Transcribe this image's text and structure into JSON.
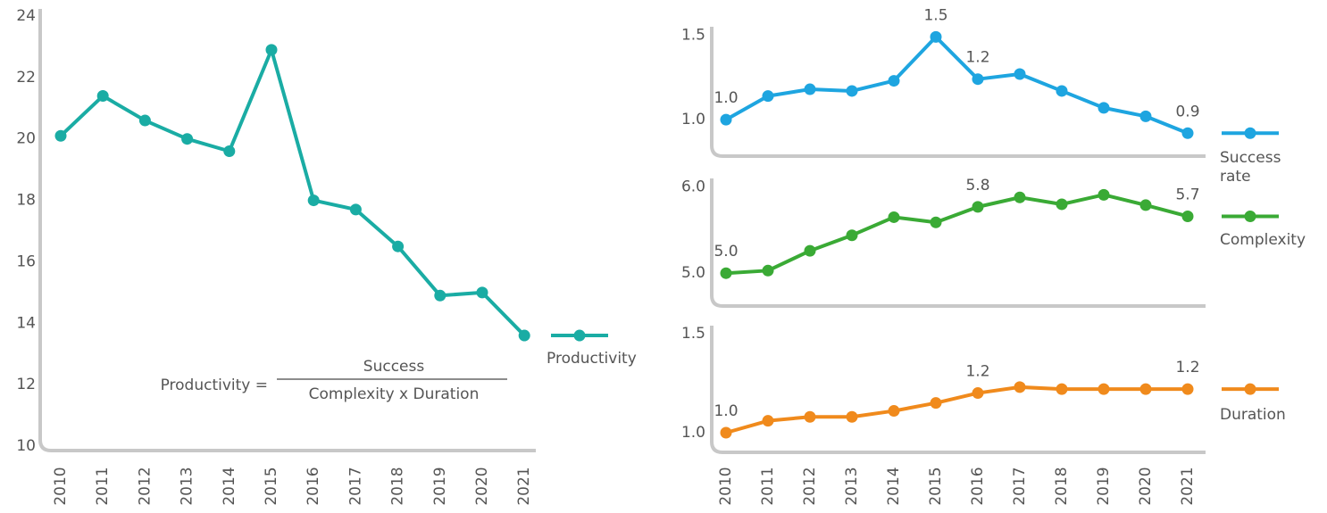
{
  "chart_data": [
    {
      "type": "line",
      "categories": [
        "2010",
        "2011",
        "2012",
        "2013",
        "2014",
        "2015",
        "2016",
        "2017",
        "2018",
        "2019",
        "2020",
        "2021"
      ],
      "series": [
        {
          "name": "Productivity",
          "color": "#1aaca4",
          "values": [
            20.1,
            21.4,
            20.6,
            20.0,
            19.6,
            22.9,
            18.0,
            17.7,
            16.5,
            14.9,
            15.0,
            13.6
          ]
        }
      ],
      "ylim": [
        10,
        24
      ],
      "yticks": [
        10,
        12,
        14,
        16,
        18,
        20,
        22,
        24
      ],
      "annotation": {
        "left": "Productivity =",
        "numerator": "Success",
        "denominator": "Complexity x Duration"
      }
    },
    {
      "type": "line",
      "series": [
        {
          "name": "Success rate",
          "color": "#1ea5e0",
          "values": [
            1.0,
            1.14,
            1.18,
            1.17,
            1.23,
            1.49,
            1.24,
            1.27,
            1.17,
            1.07,
            1.02,
            0.92
          ],
          "value_labels": [
            "1.0",
            null,
            null,
            null,
            null,
            "1.5",
            "1.2",
            null,
            null,
            null,
            null,
            "0.9"
          ]
        }
      ],
      "ylim": [
        0.8,
        1.55
      ],
      "yticks": [
        {
          "value": 1,
          "label": "1.0"
        },
        {
          "value": 1.5,
          "label": "1.5"
        }
      ]
    },
    {
      "type": "line",
      "series": [
        {
          "name": "Complexity",
          "color": "#3aaa35",
          "values": [
            5.0,
            5.03,
            5.26,
            5.44,
            5.65,
            5.59,
            5.77,
            5.88,
            5.8,
            5.91,
            5.79,
            5.66
          ],
          "value_labels": [
            "5.0",
            null,
            null,
            null,
            null,
            null,
            "5.8",
            null,
            null,
            null,
            null,
            "5.7"
          ]
        }
      ],
      "ylim": [
        4.65,
        6.1
      ],
      "yticks": [
        {
          "value": 5,
          "label": "5.0"
        },
        {
          "value": 6,
          "label": "6.0"
        }
      ]
    },
    {
      "type": "line",
      "categories": [
        "2010",
        "2011",
        "2012",
        "2013",
        "2014",
        "2015",
        "2016",
        "2017",
        "2018",
        "2019",
        "2020",
        "2021"
      ],
      "series": [
        {
          "name": "Duration",
          "color": "#f08a1c",
          "values": [
            1.0,
            1.06,
            1.08,
            1.08,
            1.11,
            1.15,
            1.2,
            1.23,
            1.22,
            1.22,
            1.22,
            1.22
          ],
          "value_labels": [
            "1.0",
            null,
            null,
            null,
            null,
            null,
            "1.2",
            null,
            null,
            null,
            null,
            "1.2"
          ]
        }
      ],
      "ylim": [
        0.91,
        1.54
      ],
      "yticks": [
        {
          "value": 1,
          "label": "1.0"
        },
        {
          "value": 1.5,
          "label": "1.5"
        }
      ]
    }
  ]
}
